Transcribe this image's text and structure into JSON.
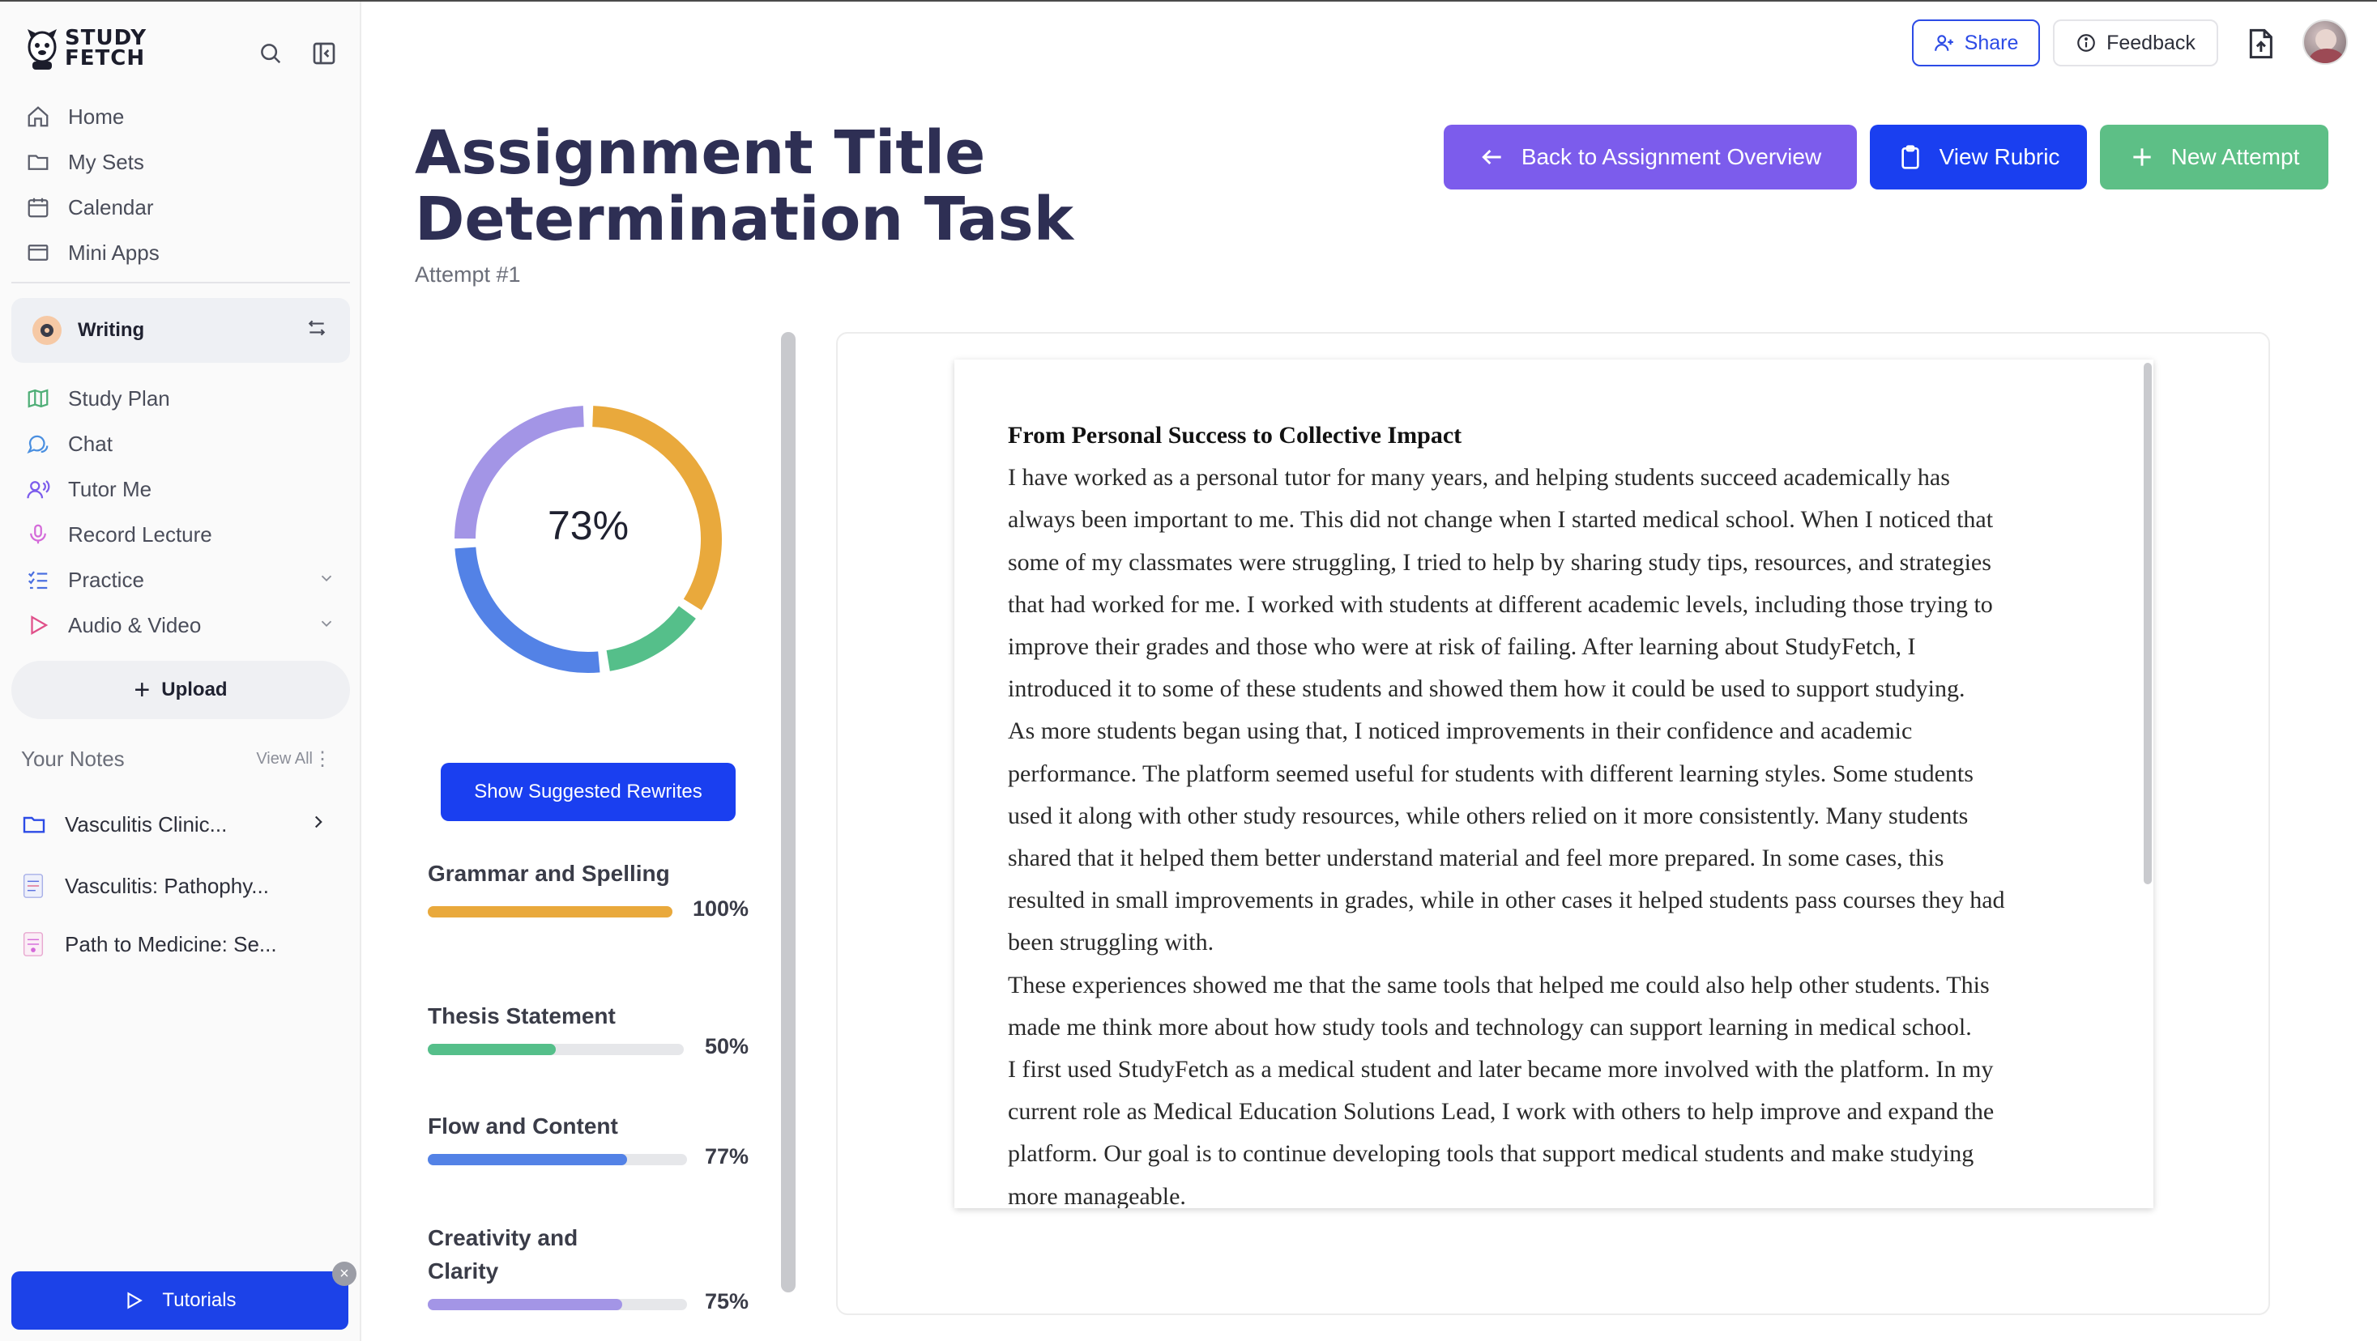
{
  "sidebar": {
    "logo_text_line1": "STUDY",
    "logo_text_line2": "FETCH",
    "nav": [
      {
        "label": "Home",
        "icon": "home-icon"
      },
      {
        "label": "My Sets",
        "icon": "folder-icon"
      },
      {
        "label": "Calendar",
        "icon": "calendar-icon"
      },
      {
        "label": "Mini Apps",
        "icon": "window-icon"
      }
    ],
    "workspace": {
      "label": "Writing",
      "icon": "writing-icon"
    },
    "tools": [
      {
        "label": "Study Plan",
        "icon": "map-icon"
      },
      {
        "label": "Chat",
        "icon": "chat-icon"
      },
      {
        "label": "Tutor Me",
        "icon": "tutor-icon"
      },
      {
        "label": "Record Lecture",
        "icon": "microphone-icon"
      },
      {
        "label": "Practice",
        "icon": "list-check-icon"
      },
      {
        "label": "Audio & Video",
        "icon": "play-icon"
      }
    ],
    "upload_label": "Upload",
    "notes_title": "Your Notes",
    "notes_view_all": "View All",
    "notes": [
      {
        "label": "Vasculitis Clinic...",
        "icon": "folder-icon"
      },
      {
        "label": "Vasculitis: Pathophy...",
        "icon": "note-icon"
      },
      {
        "label": "Path to Medicine: Se...",
        "icon": "note-pink-icon"
      }
    ],
    "tutorials_label": "Tutorials"
  },
  "topbar": {
    "share_label": "Share",
    "feedback_label": "Feedback"
  },
  "header": {
    "title": "Assignment Title Determination Task",
    "attempt": "Attempt #1",
    "back_label": "Back to Assignment Overview",
    "rubric_label": "View Rubric",
    "new_attempt_label": "New Attempt"
  },
  "colors": {
    "grammar": "#e9a93c",
    "thesis": "#55bf8a",
    "flow": "#5382e6",
    "creativity": "#a395e6"
  },
  "scores": {
    "overall": "73%",
    "suggest_label": "Show Suggested Rewrites",
    "criteria": [
      {
        "label": "Grammar and Spelling",
        "pct": "100%",
        "value": 1.0,
        "color": "#e9a93c"
      },
      {
        "label": "Thesis Statement",
        "pct": "50%",
        "value": 0.5,
        "color": "#55bf8a"
      },
      {
        "label": "Flow and Content",
        "pct": "77%",
        "value": 0.77,
        "color": "#5382e6"
      },
      {
        "label": "Creativity and Clarity",
        "pct": "75%",
        "value": 0.75,
        "color": "#a395e6"
      }
    ]
  },
  "document": {
    "heading": "From Personal Success to Collective Impact",
    "lines": [
      "I have worked as a personal tutor for many years, and helping students succeed academically has",
      "always been important to me. This did not change when I started medical school. When I noticed that",
      "some of my classmates were struggling, I tried to help by sharing study tips, resources, and strategies",
      "that had worked for me. I worked with students at different academic levels, including those trying to",
      "improve their grades and those who were at risk of failing. After learning about StudyFetch, I",
      "introduced it to some of these students and showed them how it could be used to support studying.",
      "As more students began using that, I noticed improvements in their confidence and academic",
      "performance. The platform seemed useful for students with different learning styles. Some students",
      "used it along with other study resources, while others relied on it more consistently. Many students",
      "shared that it helped them better understand material and feel more prepared. In some cases, this",
      "resulted in small improvements in grades, while in other cases it helped students pass courses they had",
      "been struggling with.",
      "These experiences showed me that the same tools that helped me could also help other students. This",
      "made me think more about how study tools and technology can support learning in medical school.",
      "I first used StudyFetch as a medical student and later became more involved with the platform. In my",
      "current role as Medical Education Solutions Lead, I work with others to help improve and expand the",
      "platform. Our goal is to continue developing tools that support medical students and make studying",
      "more manageable."
    ]
  }
}
